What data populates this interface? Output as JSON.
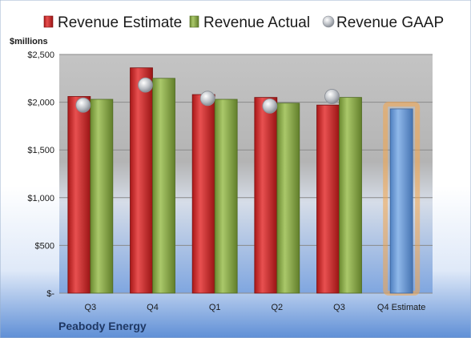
{
  "company": "Peabody Energy",
  "chart_data": {
    "type": "bar",
    "ylabel": "$millions",
    "ylim": [
      0,
      2500
    ],
    "yticks": [
      {
        "value": 0,
        "label": "$-"
      },
      {
        "value": 500,
        "label": "$500"
      },
      {
        "value": 1000,
        "label": "$1,000"
      },
      {
        "value": 1500,
        "label": "$1,500"
      },
      {
        "value": 2000,
        "label": "$2,000"
      },
      {
        "value": 2500,
        "label": "$2,500"
      }
    ],
    "categories": [
      "Q3",
      "Q4",
      "Q1",
      "Q2",
      "Q3",
      "Q4 Estimate"
    ],
    "grid": true,
    "legend_position": "top",
    "series": [
      {
        "name": "Revenue Estimate",
        "kind": "bar",
        "color": "#cc2a2a",
        "values": [
          2060,
          2360,
          2080,
          2050,
          1970,
          null
        ]
      },
      {
        "name": "Revenue Actual",
        "kind": "bar",
        "color": "#8fb04a",
        "values": [
          2030,
          2250,
          2030,
          1990,
          2050,
          null
        ]
      },
      {
        "name": "Revenue GAAP",
        "kind": "marker",
        "color": "#b8bcc2",
        "values": [
          1970,
          2180,
          2040,
          1960,
          2060,
          null
        ]
      }
    ],
    "estimate_bar": {
      "category_index": 5,
      "value": 1930,
      "color": "#6fa0d8",
      "glow": "#f5a64a"
    }
  }
}
